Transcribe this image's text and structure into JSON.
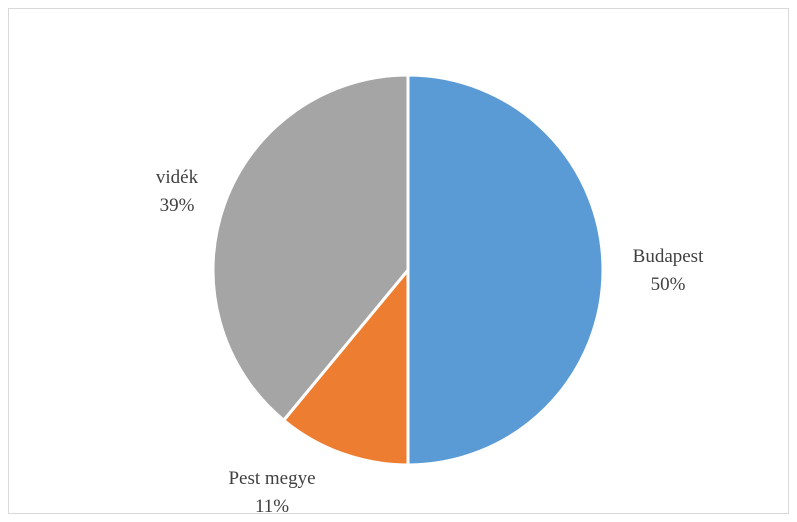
{
  "chart_data": {
    "type": "pie",
    "title": "",
    "series": [
      {
        "slices": [
          {
            "category": "Budapest",
            "value": 50,
            "label": "50%",
            "color": "#5b9bd5"
          },
          {
            "category": "Pest megye",
            "value": 11,
            "label": "11%",
            "color": "#ed7d31"
          },
          {
            "category": "vidék",
            "value": 39,
            "label": "39%",
            "color": "#a5a5a5"
          }
        ]
      }
    ],
    "start_angle_deg": 0,
    "direction": "clockwise",
    "legend": "none",
    "data_labels": "category-and-percent, outside"
  }
}
